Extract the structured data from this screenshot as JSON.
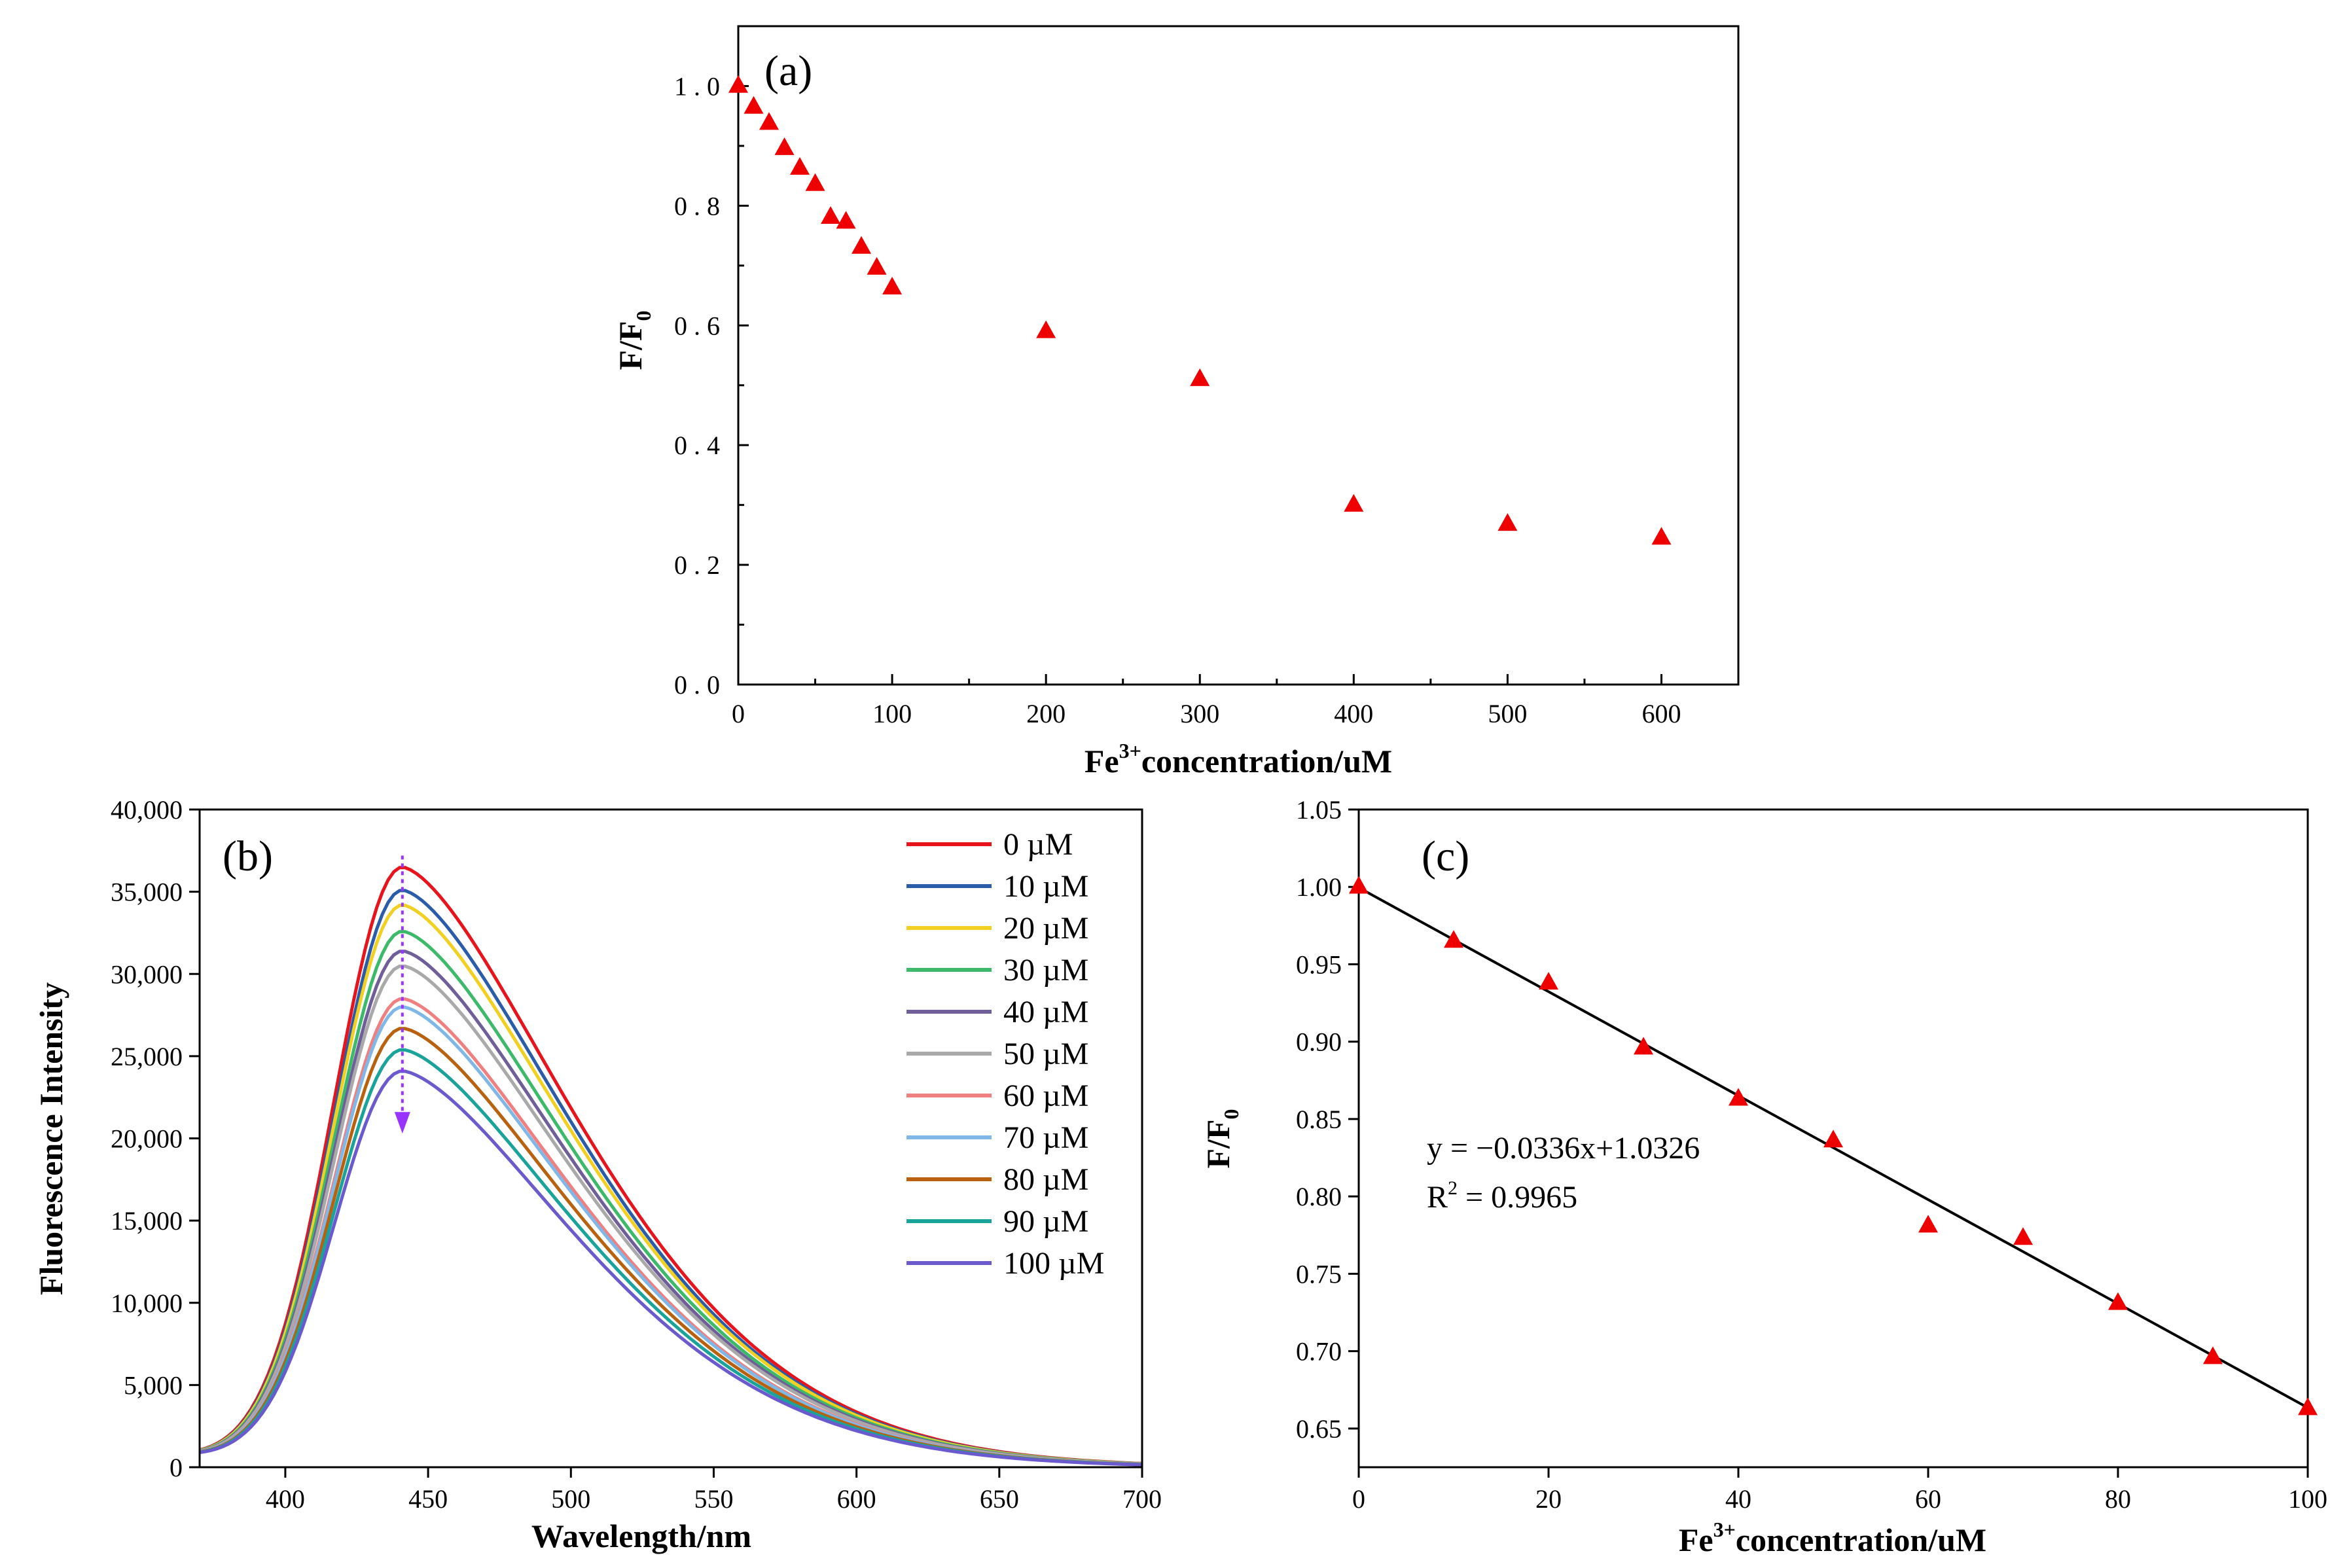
{
  "chart_data": [
    {
      "panel": "(a)",
      "type": "scatter",
      "xlabel": "Fe",
      "xlabel_sup": "3+",
      "xlabel_suffix": "concentration/uM",
      "ylabel": "F/F",
      "ylabel_sub": "0",
      "xlim": [
        0,
        650
      ],
      "ylim": [
        0,
        1.1
      ],
      "xticks": [
        0,
        100,
        200,
        300,
        400,
        500,
        600
      ],
      "yticks": [
        0.0,
        0.2,
        0.4,
        0.6,
        0.8,
        1.0
      ],
      "tick_format": "spaced-decimal",
      "marker": "triangle",
      "marker_color": "#ee0000",
      "x": [
        0,
        10,
        20,
        30,
        40,
        50,
        60,
        70,
        80,
        90,
        100,
        200,
        300,
        400,
        500,
        600
      ],
      "y": [
        1.0,
        0.965,
        0.938,
        0.896,
        0.863,
        0.836,
        0.781,
        0.773,
        0.731,
        0.696,
        0.663,
        0.59,
        0.51,
        0.3,
        0.268,
        0.245
      ]
    },
    {
      "panel": "(b)",
      "type": "line",
      "xlabel": "Wavelength/nm",
      "ylabel": "Fluorescence Intensity",
      "xlim": [
        370,
        700
      ],
      "ylim": [
        0,
        40000
      ],
      "xticks": [
        400,
        450,
        500,
        550,
        600,
        650,
        700
      ],
      "yticks": [
        0,
        5000,
        10000,
        15000,
        20000,
        25000,
        30000,
        35000,
        40000
      ],
      "ytick_labels": [
        "0",
        "5,000",
        "10,000",
        "15,000",
        "20,000",
        "25,000",
        "30,000",
        "35,000",
        "40,000"
      ],
      "peak_wavelength": 441,
      "legend_position": "top-right",
      "arrow_color": "#9933ff",
      "series": [
        {
          "name": "0 µM",
          "peak": 36500,
          "color": "#e8141c"
        },
        {
          "name": "10 µM",
          "peak": 35100,
          "color": "#2a5caa"
        },
        {
          "name": "20 µM",
          "peak": 34200,
          "color": "#f2d022"
        },
        {
          "name": "30 µM",
          "peak": 32600,
          "color": "#3cba6a"
        },
        {
          "name": "40 µM",
          "peak": 31400,
          "color": "#6f5e9a"
        },
        {
          "name": "50 µM",
          "peak": 30500,
          "color": "#a9a9a9"
        },
        {
          "name": "60 µM",
          "peak": 28500,
          "color": "#f08080"
        },
        {
          "name": "70 µM",
          "peak": 28000,
          "color": "#7fb7e6"
        },
        {
          "name": "80 µM",
          "peak": 26700,
          "color": "#b8610f"
        },
        {
          "name": "90 µM",
          "peak": 25400,
          "color": "#1aa39a"
        },
        {
          "name": "100 µM",
          "peak": 24100,
          "color": "#6a5acd"
        }
      ]
    },
    {
      "panel": "(c)",
      "type": "scatter",
      "xlabel": "Fe",
      "xlabel_sup": "3+",
      "xlabel_suffix": "concentration/uM",
      "ylabel": "F/F",
      "ylabel_sub": "0",
      "xlim": [
        0,
        100
      ],
      "ylim": [
        0.625,
        1.05
      ],
      "xticks": [
        0,
        20,
        40,
        60,
        80,
        100
      ],
      "yticks": [
        0.65,
        0.7,
        0.75,
        0.8,
        0.85,
        0.9,
        0.95,
        1.0,
        1.05
      ],
      "marker": "triangle",
      "marker_color": "#ee0000",
      "x": [
        0,
        10,
        20,
        30,
        40,
        50,
        60,
        70,
        80,
        90,
        100
      ],
      "y": [
        1.0,
        0.965,
        0.938,
        0.896,
        0.863,
        0.836,
        0.781,
        0.773,
        0.731,
        0.696,
        0.663
      ],
      "fit": {
        "x": [
          0,
          100
        ],
        "y": [
          0.9995,
          0.6635
        ],
        "color": "#000000"
      },
      "equation": "y = −0.0336x+1.0326",
      "r2_label": "R",
      "r2_sup": "2",
      "r2_value": " = 0.9965"
    }
  ]
}
